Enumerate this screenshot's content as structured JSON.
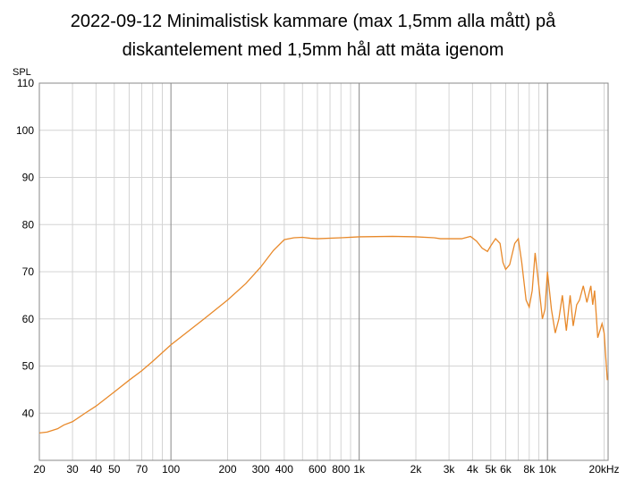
{
  "chart_data": {
    "type": "line",
    "title": [
      "2022-09-12 Minimalistisk kammare (max 1,5mm alla mått) på",
      "diskantelement med 1,5mm hål att mäta igenom"
    ],
    "y_label": "SPL",
    "log_x": true,
    "grid": true,
    "xlim": [
      20,
      21000
    ],
    "ylim": [
      30,
      110
    ],
    "xticks": [
      20,
      30,
      40,
      50,
      70,
      100,
      200,
      300,
      400,
      600,
      800,
      {
        "value": 1000,
        "label": "1k"
      },
      {
        "value": 2000,
        "label": "2k"
      },
      {
        "value": 3000,
        "label": "3k"
      },
      {
        "value": 4000,
        "label": "4k"
      },
      {
        "value": 5000,
        "label": "5k"
      },
      {
        "value": 6000,
        "label": "6k"
      },
      {
        "value": 8000,
        "label": "8k"
      },
      {
        "value": 10000,
        "label": "10k"
      },
      {
        "value": 20000,
        "label": "20kHz"
      }
    ],
    "x_minor_grid": [
      60,
      80,
      90,
      500,
      700,
      900,
      7000,
      9000
    ],
    "yticks": [
      40,
      50,
      60,
      70,
      80,
      90,
      100,
      110
    ],
    "series": [
      {
        "color": "#e8892a",
        "x": [
          20,
          22,
          25,
          27,
          30,
          35,
          40,
          50,
          60,
          70,
          80,
          100,
          150,
          200,
          250,
          300,
          350,
          400,
          450,
          500,
          550,
          600,
          800,
          1000,
          1500,
          2000,
          2500,
          2700,
          3000,
          3500,
          3900,
          4200,
          4500,
          4800,
          5000,
          5300,
          5600,
          5800,
          6000,
          6300,
          6700,
          7000,
          7300,
          7700,
          8000,
          8300,
          8600,
          9000,
          9400,
          9700,
          10000,
          10500,
          11000,
          11500,
          12000,
          12600,
          13200,
          13700,
          14300,
          14800,
          15500,
          16200,
          17000,
          17400,
          17800,
          18500,
          19500,
          20000,
          20800
        ],
        "values": [
          35.8,
          36.0,
          36.7,
          37.5,
          38.2,
          40,
          41.5,
          44.5,
          47,
          49,
          51,
          54.5,
          60,
          64,
          67.5,
          71,
          74.5,
          76.8,
          77.2,
          77.3,
          77.1,
          77.0,
          77.2,
          77.4,
          77.5,
          77.4,
          77.2,
          77.0,
          77.0,
          77.0,
          77.5,
          76.5,
          75,
          74.3,
          75.5,
          77,
          76,
          72,
          70.5,
          71.5,
          76,
          77,
          72,
          64,
          62.5,
          66,
          74,
          67,
          60,
          62,
          70,
          62,
          57,
          60,
          65,
          57.5,
          65,
          58.5,
          63,
          64,
          67,
          63.5,
          67,
          63,
          66,
          56,
          59,
          57,
          47
        ]
      }
    ]
  }
}
